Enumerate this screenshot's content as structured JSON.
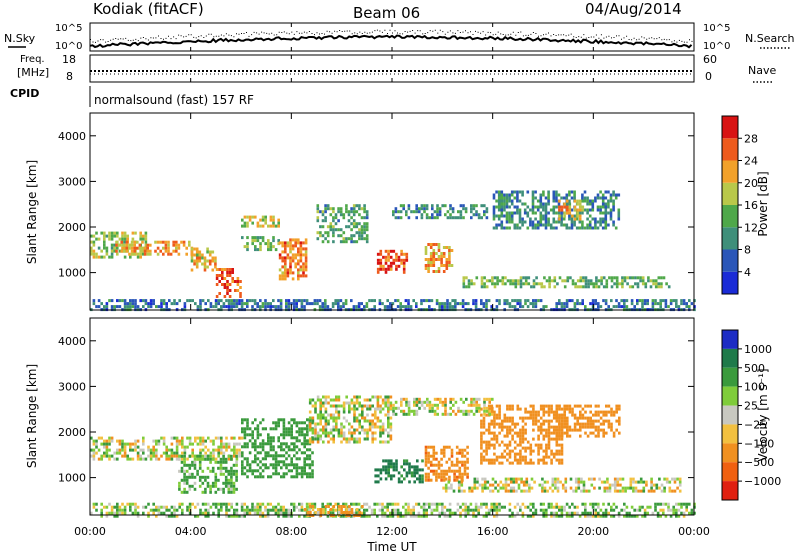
{
  "header": {
    "station": "Kodiak (fitACF)",
    "beam": "Beam 06",
    "date": "04/Aug/2014"
  },
  "status_panels": {
    "nsky_label": "N.Sky",
    "nsky_ticks": [
      "10^5",
      "10^0"
    ],
    "nsearch_label": "N.Search",
    "nsearch_ticks": [
      "10^5",
      "10^0"
    ],
    "freq_label_1": "Freq.",
    "freq_label_2": "[MHz]",
    "freq_ticks": [
      "18",
      "8"
    ],
    "nave_label": "Nave",
    "nave_ticks": [
      "60",
      "0"
    ],
    "cpid_label": "CPID",
    "cpid_text": "normalsound (fast) 157 RF"
  },
  "colorbars": {
    "power": {
      "title": "Power [dB]",
      "labels": [
        "4",
        "8",
        "12",
        "16",
        "20",
        "24",
        "28"
      ],
      "colors": [
        "#1a2bd6",
        "#2a56b8",
        "#3f8f7a",
        "#4fa84a",
        "#b9c84a",
        "#f2a12a",
        "#ee5a1c",
        "#d81313"
      ]
    },
    "velocity": {
      "title": "Velocity [m s⁻¹]",
      "labels": [
        "1000",
        "500",
        "100",
        "25",
        "−25",
        "−100",
        "−500",
        "−1000"
      ],
      "colors": [
        "#1c2cc4",
        "#1f7a4a",
        "#3a9a3c",
        "#7fcc3a",
        "#c8c8c0",
        "#f2c040",
        "#f09020",
        "#f06010",
        "#e02010"
      ]
    }
  },
  "axes": {
    "y_label": "Slant Range [km]",
    "y_ticks": [
      "1000",
      "2000",
      "3000",
      "4000"
    ],
    "x_ticks": [
      "00:00",
      "04:00",
      "08:00",
      "12:00",
      "16:00",
      "20:00",
      "00:00"
    ],
    "x_label": "Time UT"
  },
  "chart_data": [
    {
      "type": "heatmap",
      "panel": "power",
      "ylabel": "Slant Range [km]",
      "xlabel": "Time UT",
      "y_range_km": [
        180,
        4500
      ],
      "x_range_hours": [
        0,
        24
      ],
      "color_scale_db": [
        0,
        32
      ],
      "regions": [
        {
          "t": [
            0.0,
            2.2
          ],
          "r": [
            1350,
            1900
          ],
          "db": 16
        },
        {
          "t": [
            1.0,
            4.0
          ],
          "r": [
            1400,
            1700
          ],
          "db": 22
        },
        {
          "t": [
            4.0,
            5.0
          ],
          "r": [
            1050,
            1550
          ],
          "db": 20
        },
        {
          "t": [
            5.0,
            6.0
          ],
          "r": [
            450,
            1100
          ],
          "db": 26
        },
        {
          "t": [
            6.0,
            7.5
          ],
          "r": [
            1500,
            1800
          ],
          "db": 14
        },
        {
          "t": [
            6.0,
            7.5
          ],
          "r": [
            2000,
            2250
          ],
          "db": 18
        },
        {
          "t": [
            7.5,
            8.6
          ],
          "r": [
            850,
            1750
          ],
          "db": 24
        },
        {
          "t": [
            9.0,
            11.0
          ],
          "r": [
            1700,
            2500
          ],
          "db": 12
        },
        {
          "t": [
            11.4,
            12.6
          ],
          "r": [
            1000,
            1500
          ],
          "db": 26
        },
        {
          "t": [
            13.3,
            14.4
          ],
          "r": [
            1000,
            1650
          ],
          "db": 22
        },
        {
          "t": [
            12.0,
            15.8
          ],
          "r": [
            2200,
            2500
          ],
          "db": 10
        },
        {
          "t": [
            16.0,
            21.0
          ],
          "r": [
            2000,
            2800
          ],
          "db": 10
        },
        {
          "t": [
            18.6,
            19.6
          ],
          "r": [
            2200,
            2600
          ],
          "db": 20
        },
        {
          "t": [
            14.8,
            23.0
          ],
          "r": [
            700,
            920
          ],
          "db": 14
        },
        {
          "t": [
            0.0,
            24.0
          ],
          "r": [
            180,
            420
          ],
          "db": 8
        }
      ]
    },
    {
      "type": "heatmap",
      "panel": "velocity",
      "ylabel": "Slant Range [km]",
      "xlabel": "Time UT",
      "y_range_km": [
        180,
        4500
      ],
      "x_range_hours": [
        0,
        24
      ],
      "color_scale_ms": [
        -1000,
        1000
      ],
      "regions": [
        {
          "t": [
            0.0,
            6.0
          ],
          "r": [
            1400,
            1900
          ],
          "v": 0
        },
        {
          "t": [
            3.5,
            5.8
          ],
          "r": [
            700,
            1500
          ],
          "v": 150
        },
        {
          "t": [
            6.0,
            8.8
          ],
          "r": [
            1000,
            2300
          ],
          "v": 300
        },
        {
          "t": [
            8.7,
            12.0
          ],
          "r": [
            1800,
            2800
          ],
          "v": 0
        },
        {
          "t": [
            11.3,
            13.2
          ],
          "r": [
            900,
            1400
          ],
          "v": 600
        },
        {
          "t": [
            13.3,
            15.0
          ],
          "r": [
            950,
            1700
          ],
          "v": -400
        },
        {
          "t": [
            15.5,
            18.8
          ],
          "r": [
            1300,
            2600
          ],
          "v": -350
        },
        {
          "t": [
            18.5,
            21.0
          ],
          "r": [
            1900,
            2600
          ],
          "v": -300
        },
        {
          "t": [
            11.8,
            16.0
          ],
          "r": [
            2400,
            2750
          ],
          "v": 0
        },
        {
          "t": [
            14.0,
            23.5
          ],
          "r": [
            700,
            1000
          ],
          "v": 0
        },
        {
          "t": [
            0.0,
            24.0
          ],
          "r": [
            180,
            450
          ],
          "v": 80
        },
        {
          "t": [
            8.5,
            10.8
          ],
          "r": [
            180,
            400
          ],
          "v": -150
        }
      ]
    }
  ]
}
